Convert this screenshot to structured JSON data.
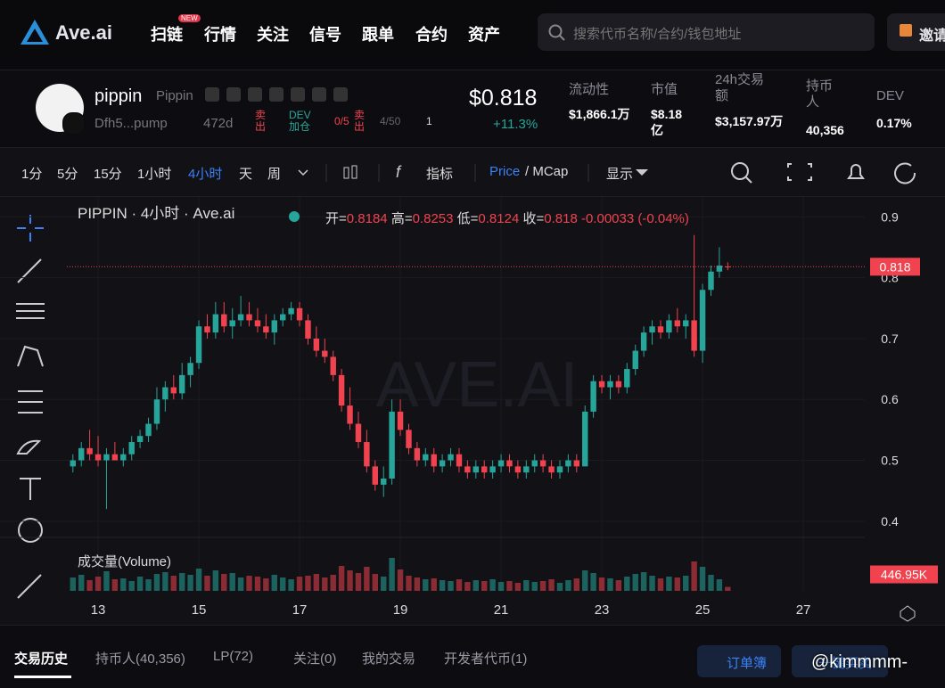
{
  "header": {
    "logo": "Ave.ai",
    "nav": [
      "扫链",
      "行情",
      "关注",
      "信号",
      "跟单",
      "合约",
      "资产"
    ],
    "new_badge": "NEW",
    "search_placeholder": "搜索代币名称/合约/钱包地址",
    "invite": "邀请"
  },
  "token": {
    "name": "pippin",
    "symbol": "Pippin",
    "address": "Dfh5...pump",
    "age": "472d",
    "tags": [
      "卖出",
      "DEV 加仓",
      "0/5",
      "卖出",
      "4/50",
      "1"
    ],
    "price": "$0.818",
    "change": "+11.3%",
    "stats": [
      {
        "label": "流动性",
        "value": "$1,866.1万"
      },
      {
        "label": "市值",
        "value": "$8.18亿"
      },
      {
        "label": "24h交易额",
        "value": "$3,157.97万"
      },
      {
        "label": "持币人",
        "value": "40,356"
      },
      {
        "label": "DEV",
        "value": "0.17%"
      }
    ]
  },
  "toolbar": {
    "intervals": [
      "1分",
      "5分",
      "15分",
      "1小时",
      "4小时",
      "天",
      "周"
    ],
    "indicator": "指标",
    "price": "Price",
    "mcap": "/ MCap",
    "display": "显示"
  },
  "chart_data": {
    "type": "candlestick",
    "title": "PIPPIN · 4小时 · Ave.ai",
    "ohlc_labels": [
      "开=",
      "高=",
      "低=",
      "收="
    ],
    "change_label": "-0.00033 (-0.04%)",
    "watermark": "AVE.AI",
    "volume_title": "成交量(Volume)",
    "volume_last_label": "446.95K",
    "up_color": "#26a69a",
    "down_color": "#f0434f",
    "grid": true,
    "x": [
      12.5,
      12.667,
      12.833,
      13,
      13.167,
      13.333,
      13.5,
      13.667,
      13.833,
      14,
      14.167,
      14.333,
      14.5,
      14.667,
      14.833,
      15,
      15.167,
      15.333,
      15.5,
      15.667,
      15.833,
      16,
      16.167,
      16.333,
      16.5,
      16.667,
      16.833,
      17,
      17.167,
      17.333,
      17.5,
      17.667,
      17.833,
      18,
      18.167,
      18.333,
      18.5,
      18.667,
      18.833,
      19,
      19.167,
      19.333,
      19.5,
      19.667,
      19.833,
      20,
      20.167,
      20.333,
      20.5,
      20.667,
      20.833,
      21,
      21.167,
      21.333,
      21.5,
      21.667,
      21.833,
      22,
      22.167,
      22.333,
      22.5,
      22.667,
      22.833,
      23,
      23.167,
      23.333,
      23.5,
      23.667,
      23.833,
      24,
      24.167,
      24.333,
      24.5,
      24.667,
      24.833,
      25,
      25.167,
      25.333,
      25.5
    ],
    "candles": [
      [
        0.49,
        0.51,
        0.48,
        0.5
      ],
      [
        0.5,
        0.53,
        0.49,
        0.52
      ],
      [
        0.52,
        0.55,
        0.5,
        0.51
      ],
      [
        0.51,
        0.54,
        0.49,
        0.5
      ],
      [
        0.5,
        0.52,
        0.42,
        0.51
      ],
      [
        0.51,
        0.53,
        0.5,
        0.5
      ],
      [
        0.5,
        0.52,
        0.49,
        0.51
      ],
      [
        0.51,
        0.54,
        0.5,
        0.53
      ],
      [
        0.53,
        0.55,
        0.52,
        0.54
      ],
      [
        0.54,
        0.57,
        0.53,
        0.56
      ],
      [
        0.56,
        0.62,
        0.55,
        0.6
      ],
      [
        0.6,
        0.63,
        0.58,
        0.62
      ],
      [
        0.62,
        0.64,
        0.6,
        0.61
      ],
      [
        0.61,
        0.66,
        0.6,
        0.64
      ],
      [
        0.64,
        0.67,
        0.62,
        0.66
      ],
      [
        0.66,
        0.73,
        0.65,
        0.72
      ],
      [
        0.72,
        0.74,
        0.7,
        0.71
      ],
      [
        0.71,
        0.76,
        0.7,
        0.74
      ],
      [
        0.74,
        0.76,
        0.71,
        0.72
      ],
      [
        0.72,
        0.75,
        0.7,
        0.73
      ],
      [
        0.73,
        0.77,
        0.72,
        0.74
      ],
      [
        0.74,
        0.76,
        0.72,
        0.73
      ],
      [
        0.73,
        0.75,
        0.71,
        0.72
      ],
      [
        0.72,
        0.74,
        0.7,
        0.71
      ],
      [
        0.71,
        0.74,
        0.69,
        0.73
      ],
      [
        0.73,
        0.75,
        0.72,
        0.74
      ],
      [
        0.74,
        0.76,
        0.73,
        0.75
      ],
      [
        0.75,
        0.76,
        0.72,
        0.73
      ],
      [
        0.73,
        0.74,
        0.69,
        0.7
      ],
      [
        0.7,
        0.72,
        0.67,
        0.68
      ],
      [
        0.68,
        0.7,
        0.66,
        0.67
      ],
      [
        0.67,
        0.68,
        0.63,
        0.64
      ],
      [
        0.64,
        0.65,
        0.58,
        0.59
      ],
      [
        0.59,
        0.62,
        0.55,
        0.56
      ],
      [
        0.56,
        0.58,
        0.52,
        0.53
      ],
      [
        0.53,
        0.55,
        0.48,
        0.49
      ],
      [
        0.49,
        0.5,
        0.45,
        0.46
      ],
      [
        0.46,
        0.49,
        0.44,
        0.47
      ],
      [
        0.47,
        0.6,
        0.46,
        0.58
      ],
      [
        0.58,
        0.6,
        0.54,
        0.55
      ],
      [
        0.55,
        0.56,
        0.51,
        0.52
      ],
      [
        0.52,
        0.53,
        0.49,
        0.5
      ],
      [
        0.5,
        0.52,
        0.49,
        0.51
      ],
      [
        0.51,
        0.52,
        0.48,
        0.49
      ],
      [
        0.49,
        0.51,
        0.48,
        0.5
      ],
      [
        0.5,
        0.52,
        0.49,
        0.51
      ],
      [
        0.51,
        0.52,
        0.48,
        0.49
      ],
      [
        0.49,
        0.5,
        0.47,
        0.48
      ],
      [
        0.48,
        0.5,
        0.47,
        0.49
      ],
      [
        0.49,
        0.5,
        0.47,
        0.48
      ],
      [
        0.48,
        0.5,
        0.47,
        0.49
      ],
      [
        0.49,
        0.51,
        0.48,
        0.5
      ],
      [
        0.5,
        0.51,
        0.48,
        0.49
      ],
      [
        0.49,
        0.5,
        0.47,
        0.48
      ],
      [
        0.48,
        0.5,
        0.47,
        0.49
      ],
      [
        0.49,
        0.51,
        0.48,
        0.5
      ],
      [
        0.5,
        0.51,
        0.48,
        0.49
      ],
      [
        0.49,
        0.5,
        0.47,
        0.48
      ],
      [
        0.48,
        0.5,
        0.47,
        0.49
      ],
      [
        0.49,
        0.51,
        0.48,
        0.5
      ],
      [
        0.5,
        0.51,
        0.48,
        0.49
      ],
      [
        0.49,
        0.59,
        0.49,
        0.58
      ],
      [
        0.58,
        0.64,
        0.57,
        0.63
      ],
      [
        0.63,
        0.64,
        0.61,
        0.62
      ],
      [
        0.62,
        0.64,
        0.6,
        0.63
      ],
      [
        0.63,
        0.64,
        0.61,
        0.62
      ],
      [
        0.62,
        0.66,
        0.61,
        0.65
      ],
      [
        0.65,
        0.69,
        0.64,
        0.68
      ],
      [
        0.68,
        0.72,
        0.67,
        0.71
      ],
      [
        0.71,
        0.73,
        0.69,
        0.72
      ],
      [
        0.72,
        0.73,
        0.7,
        0.71
      ],
      [
        0.71,
        0.74,
        0.7,
        0.73
      ],
      [
        0.73,
        0.75,
        0.71,
        0.72
      ],
      [
        0.72,
        0.74,
        0.7,
        0.73
      ],
      [
        0.73,
        0.87,
        0.67,
        0.68
      ],
      [
        0.68,
        0.79,
        0.66,
        0.78
      ],
      [
        0.78,
        0.82,
        0.77,
        0.81
      ],
      [
        0.81,
        0.85,
        0.8,
        0.82
      ],
      [
        0.8184,
        0.8253,
        0.8124,
        0.818
      ]
    ],
    "volumes": [
      1500000,
      1800000,
      1200000,
      1600000,
      2200000,
      1300000,
      1400000,
      1100000,
      1600000,
      1300000,
      1900000,
      2100000,
      1700000,
      2000000,
      1800000,
      2500000,
      1700000,
      2300000,
      1900000,
      2000000,
      1500000,
      1700000,
      1600000,
      1400000,
      1800000,
      1500000,
      1300000,
      1600000,
      1700000,
      1900000,
      1500000,
      1800000,
      2800000,
      2300000,
      2000000,
      2700000,
      1900000,
      1600000,
      3700000,
      2400000,
      1700000,
      1500000,
      1300000,
      1400000,
      1200000,
      1100000,
      1300000,
      1000000,
      1200000,
      1100000,
      1300000,
      1000000,
      1100000,
      900000,
      1200000,
      1000000,
      1100000,
      1300000,
      900000,
      1200000,
      1400000,
      2300000,
      2000000,
      1500000,
      1400000,
      1200000,
      1600000,
      1900000,
      2100000,
      1700000,
      1400000,
      1600000,
      1500000,
      1700000,
      3300000,
      2700000,
      1800000,
      1300000,
      446950
    ],
    "xlim": [
      12.38,
      28.22
    ],
    "xticks": [
      13,
      15,
      17,
      19,
      21,
      23,
      25,
      27
    ],
    "ylim": [
      0.369,
      0.918
    ],
    "yticks": [
      0.4,
      0.5,
      0.6,
      0.7,
      0.8,
      0.9
    ],
    "volume_ylim": [
      0,
      4000000
    ]
  },
  "bottom": {
    "tabs": [
      "交易历史",
      "持币人(40,356)",
      "LP(72)",
      "关注(0)",
      "我的交易",
      "开发者代币(1)"
    ],
    "order_book": "订单簿",
    "quick_trade": "一键买卖",
    "overlay": "@kimmmm-"
  }
}
